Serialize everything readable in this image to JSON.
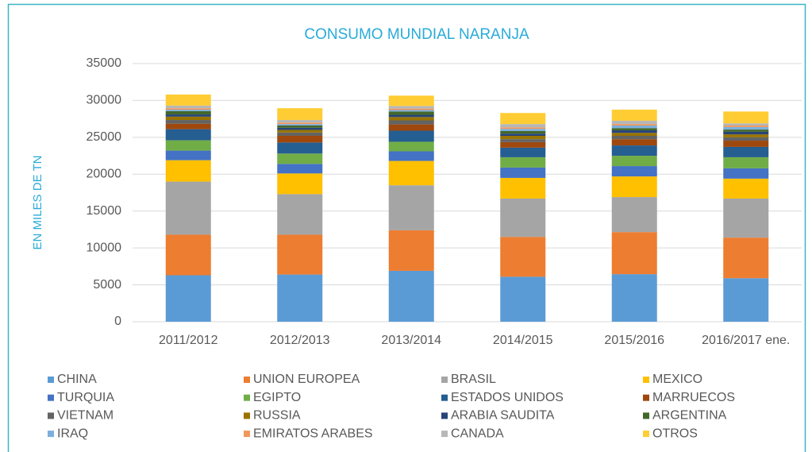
{
  "chart_data": {
    "type": "stacked_bar",
    "title": "CONSUMO MUNDIAL NARANJA",
    "y_label": "EN MILES DE TN",
    "categories": [
      "2011/2012",
      "2012/2013",
      "2013/2014",
      "2014/2015",
      "2015/2016",
      "2016/2017 ene."
    ],
    "ylim": [
      0,
      35000
    ],
    "yticks": [
      0,
      5000,
      10000,
      15000,
      20000,
      25000,
      30000,
      35000
    ],
    "grid": true,
    "legend": "bottom",
    "series": [
      {
        "name": "CHINA",
        "color": "#5b9bd5",
        "values": [
          6300,
          6400,
          6900,
          6100,
          6450,
          5900
        ]
      },
      {
        "name": "UNION EUROPEA",
        "color": "#ed7d31",
        "values": [
          5500,
          5400,
          5500,
          5400,
          5700,
          5500
        ]
      },
      {
        "name": "BRASIL",
        "color": "#a5a5a5",
        "values": [
          7200,
          5500,
          6100,
          5200,
          4750,
          5300
        ]
      },
      {
        "name": "MEXICO",
        "color": "#ffc000",
        "values": [
          2900,
          2800,
          3300,
          2800,
          2800,
          2700
        ]
      },
      {
        "name": "TURQUIA",
        "color": "#4472c4",
        "values": [
          1300,
          1300,
          1300,
          1400,
          1400,
          1400
        ]
      },
      {
        "name": "EGIPTO",
        "color": "#70ad47",
        "values": [
          1400,
          1400,
          1300,
          1400,
          1400,
          1500
        ]
      },
      {
        "name": "ESTADOS UNIDOS",
        "color": "#255e91",
        "values": [
          1500,
          1500,
          1500,
          1300,
          1400,
          1400
        ]
      },
      {
        "name": "MARRUECOS",
        "color": "#9e480e",
        "values": [
          750,
          900,
          850,
          750,
          850,
          850
        ]
      },
      {
        "name": "VIETNAM",
        "color": "#636363",
        "values": [
          500,
          450,
          550,
          400,
          450,
          450
        ]
      },
      {
        "name": "RUSSIA",
        "color": "#997300",
        "values": [
          450,
          350,
          450,
          450,
          400,
          400
        ]
      },
      {
        "name": "ARABIA SAUDITA",
        "color": "#264478",
        "values": [
          300,
          300,
          300,
          300,
          350,
          350
        ]
      },
      {
        "name": "ARGENTINA",
        "color": "#43682b",
        "values": [
          450,
          300,
          450,
          350,
          300,
          300
        ]
      },
      {
        "name": "IRAQ",
        "color": "#7cafdd",
        "values": [
          200,
          200,
          200,
          300,
          350,
          350
        ]
      },
      {
        "name": "EMIRATOS ARABES",
        "color": "#f1975a",
        "values": [
          200,
          200,
          200,
          200,
          200,
          200
        ]
      },
      {
        "name": "CANADA",
        "color": "#b7b7b7",
        "values": [
          350,
          350,
          350,
          450,
          450,
          300
        ]
      },
      {
        "name": "OTROS",
        "color": "#ffcd33",
        "values": [
          1500,
          1600,
          1400,
          1500,
          1500,
          1600
        ]
      }
    ]
  }
}
